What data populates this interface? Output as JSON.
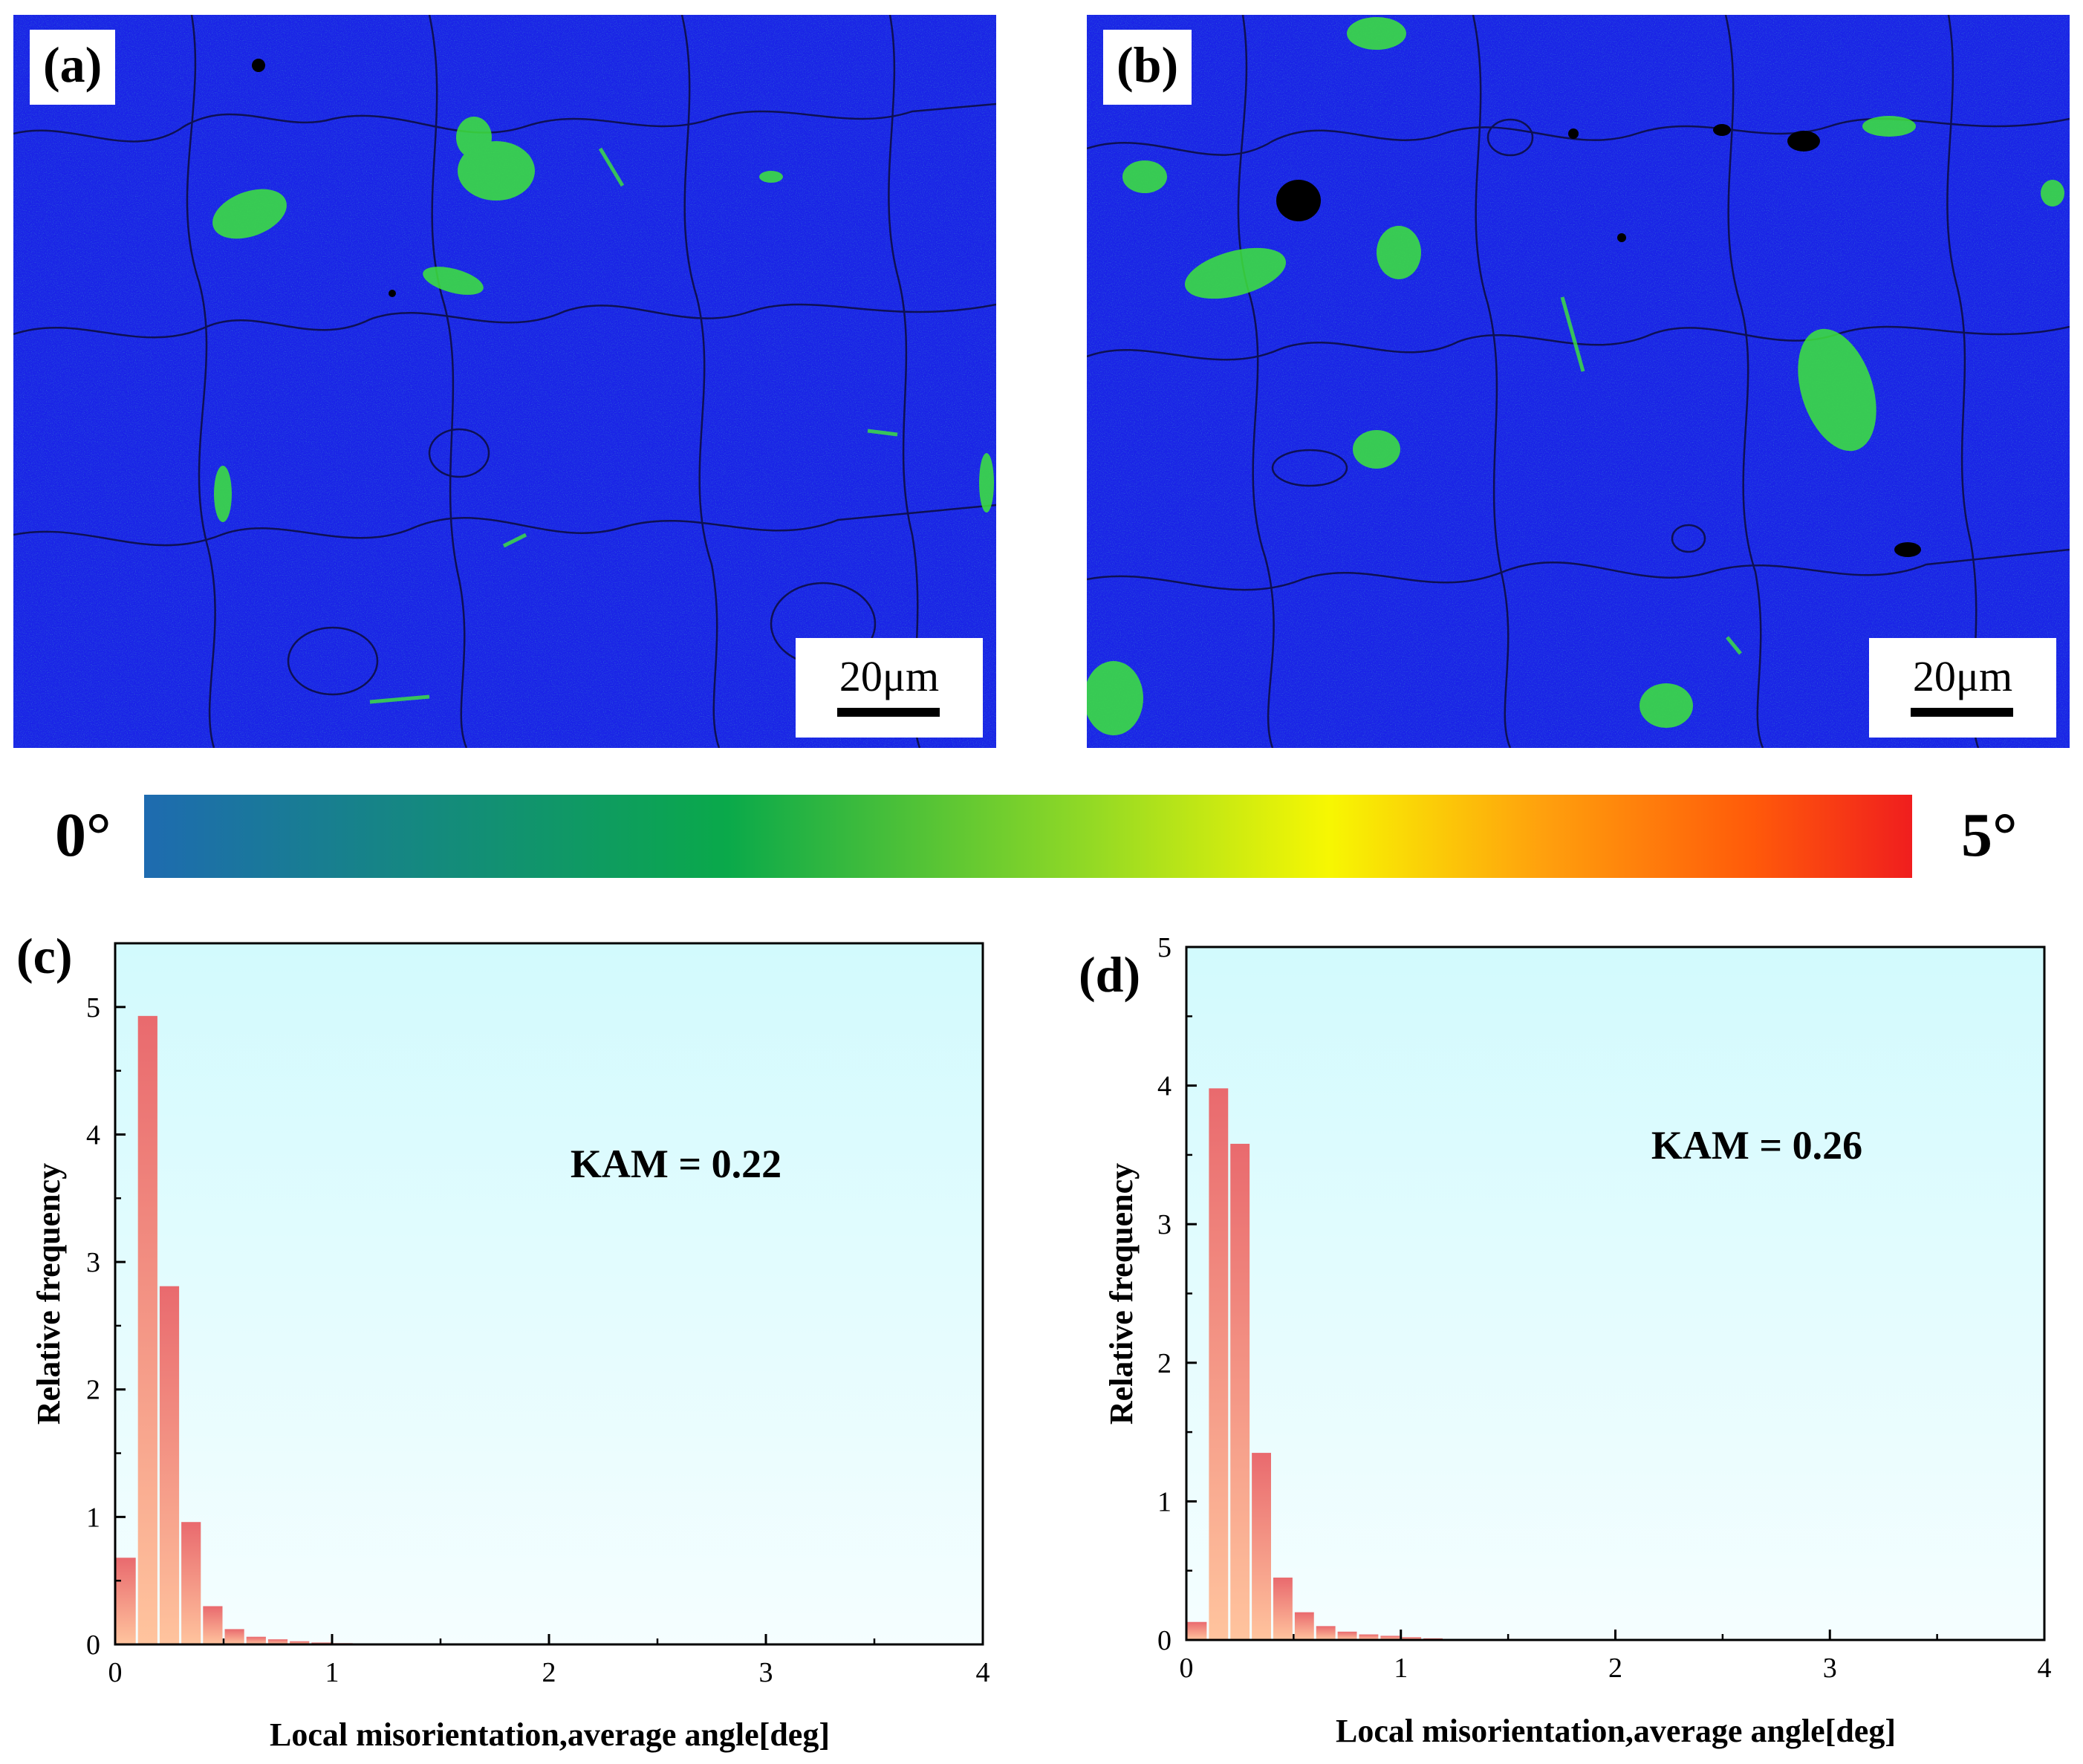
{
  "maps": [
    {
      "label": "(a)",
      "scale_text": "20μm"
    },
    {
      "label": "(b)",
      "scale_text": "20μm"
    }
  ],
  "colorbar": {
    "min_label": "0°",
    "max_label": "5°",
    "colors": [
      "#1e6bb0",
      "#0aa94a",
      "#8fd826",
      "#f7f702",
      "#ffa10d",
      "#ff5a0a",
      "#f01e1e"
    ]
  },
  "chart_data": [
    {
      "type": "bar",
      "panel": "(c)",
      "annotation": "KAM = 0.22",
      "xlabel": "Local misorientation,average angle[deg]",
      "ylabel": "Relative frequency",
      "xlim": [
        0,
        4
      ],
      "ylim": [
        0,
        5.5
      ],
      "xticks": [
        0,
        1,
        2,
        3,
        4
      ],
      "yticks": [
        0,
        1,
        2,
        3,
        4,
        5
      ],
      "bin_width": 0.1,
      "x": [
        0.05,
        0.15,
        0.25,
        0.35,
        0.45,
        0.55,
        0.65,
        0.75,
        0.85,
        0.95,
        1.05,
        1.15,
        1.25,
        1.35,
        1.45
      ],
      "values": [
        0.68,
        4.93,
        2.81,
        0.96,
        0.3,
        0.12,
        0.06,
        0.04,
        0.025,
        0.015,
        0.01,
        0.006,
        0.004,
        0.003,
        0.002
      ]
    },
    {
      "type": "bar",
      "panel": "(d)",
      "annotation": "KAM = 0.26",
      "xlabel": "Local misorientation,average angle[deg]",
      "ylabel": "Relative frequency",
      "xlim": [
        0,
        4
      ],
      "ylim": [
        0,
        5
      ],
      "xticks": [
        0,
        1,
        2,
        3,
        4
      ],
      "yticks": [
        0,
        1,
        2,
        3,
        4,
        5
      ],
      "bin_width": 0.1,
      "x": [
        0.05,
        0.15,
        0.25,
        0.35,
        0.45,
        0.55,
        0.65,
        0.75,
        0.85,
        0.95,
        1.05,
        1.15,
        1.25,
        1.35,
        1.45
      ],
      "values": [
        0.13,
        3.98,
        3.58,
        1.35,
        0.45,
        0.2,
        0.1,
        0.06,
        0.04,
        0.03,
        0.02,
        0.012,
        0.008,
        0.005,
        0.003
      ]
    }
  ]
}
